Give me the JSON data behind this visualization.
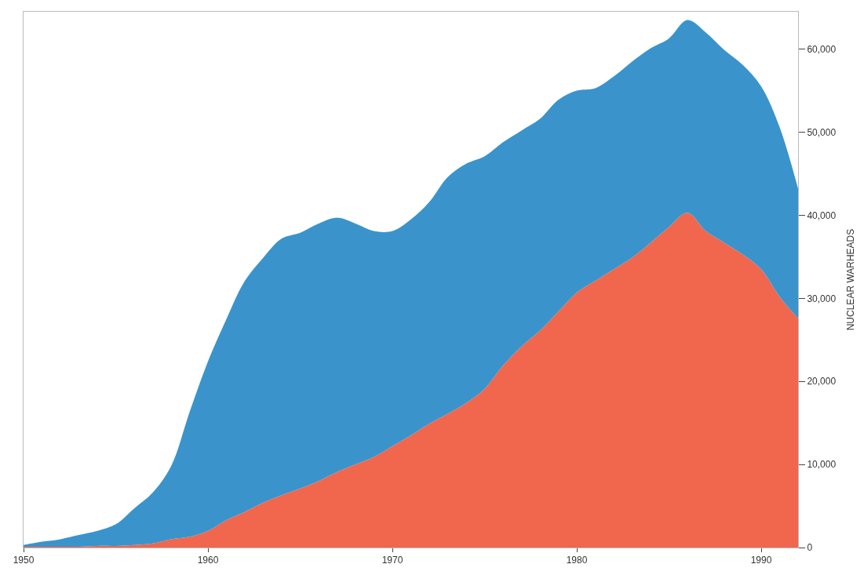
{
  "chart_data": {
    "type": "area",
    "stacked": true,
    "ylabel": "NUCLEAR WARHEADS",
    "x": [
      1950,
      1951,
      1952,
      1953,
      1954,
      1955,
      1956,
      1957,
      1958,
      1959,
      1960,
      1961,
      1962,
      1963,
      1964,
      1965,
      1966,
      1967,
      1968,
      1969,
      1970,
      1971,
      1972,
      1973,
      1974,
      1975,
      1976,
      1977,
      1978,
      1979,
      1980,
      1981,
      1982,
      1983,
      1984,
      1985,
      1986,
      1987,
      1988,
      1989,
      1990,
      1991,
      1992
    ],
    "series": [
      {
        "color": "#f0674e",
        "values": [
          100,
          100,
          100,
          100,
          200,
          200,
          300,
          500,
          1000,
          1300,
          2000,
          3300,
          4300,
          5400,
          6300,
          7100,
          8000,
          9100,
          10000,
          10900,
          12200,
          13500,
          14900,
          16100,
          17400,
          19100,
          21900,
          24200,
          26100,
          28400,
          30700,
          32100,
          33500,
          34900,
          36700,
          38600,
          40300,
          38100,
          36700,
          35300,
          33500,
          30200,
          27600
        ]
      },
      {
        "color": "#3a94cb",
        "values": [
          200,
          600,
          900,
          1400,
          1800,
          2600,
          4400,
          6100,
          8800,
          15000,
          20400,
          24200,
          27800,
          29500,
          30900,
          30800,
          31000,
          30600,
          29000,
          27200,
          25900,
          26000,
          26700,
          28500,
          28800,
          28000,
          26900,
          26000,
          25500,
          25500,
          24300,
          23200,
          23200,
          23600,
          23400,
          22700,
          23200,
          23900,
          23200,
          22800,
          22000,
          20400,
          15600
        ]
      }
    ],
    "xlim": [
      1950,
      1992
    ],
    "xticks": [
      1950,
      1960,
      1970,
      1980,
      1990
    ],
    "ylim": [
      0,
      64500
    ],
    "yticks": [
      0,
      {
        "value": 10000,
        "label": "10,000"
      },
      {
        "value": 20000,
        "label": "20,000"
      },
      {
        "value": 30000,
        "label": "30,000"
      },
      {
        "value": 40000,
        "label": "40,000"
      },
      {
        "value": 50000,
        "label": "50,000"
      },
      {
        "value": 60000,
        "label": "60,000"
      }
    ]
  }
}
